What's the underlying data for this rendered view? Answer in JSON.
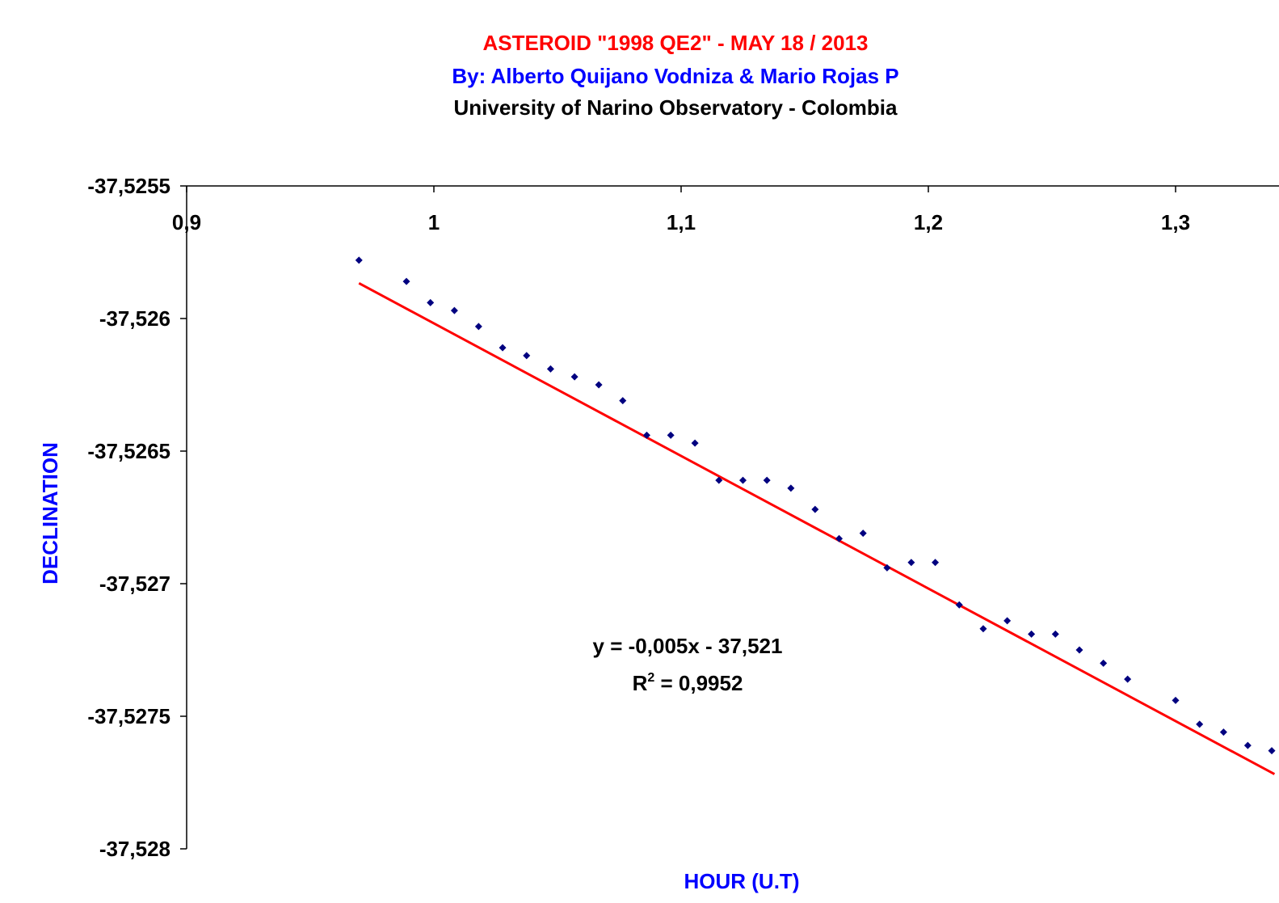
{
  "chart_data": {
    "type": "scatter",
    "title": "ASTEROID \"1998 QE2\" - MAY 18 / 2013",
    "subtitle": "By: Alberto Quijano Vodniza & Mario Rojas P",
    "subtitle2": "University of Narino Observatory - Colombia",
    "xlabel": "HOUR (U.T)",
    "ylabel": "DECLINATION",
    "xlim": [
      0.9,
      1.34
    ],
    "ylim": [
      -37.528,
      -37.5255
    ],
    "x_axis_position": "top",
    "x_ticks": [
      {
        "value": 0.9,
        "label": "0,9"
      },
      {
        "value": 1.0,
        "label": "1"
      },
      {
        "value": 1.1,
        "label": "1,1"
      },
      {
        "value": 1.2,
        "label": "1,2"
      },
      {
        "value": 1.3,
        "label": "1,3"
      }
    ],
    "y_ticks": [
      {
        "value": -37.5255,
        "label": "-37,5255"
      },
      {
        "value": -37.526,
        "label": "-37,526"
      },
      {
        "value": -37.5265,
        "label": "-37,5265"
      },
      {
        "value": -37.527,
        "label": "-37,527"
      },
      {
        "value": -37.5275,
        "label": "-37,5275"
      },
      {
        "value": -37.528,
        "label": "-37,528"
      }
    ],
    "grid": false,
    "legend": "none",
    "series": [
      {
        "points": [
          {
            "x": 0.9697,
            "y": -37.52578
          },
          {
            "x": 0.9889,
            "y": -37.52586
          },
          {
            "x": 0.9986,
            "y": -37.52594
          },
          {
            "x": 1.0083,
            "y": -37.52597
          },
          {
            "x": 1.0181,
            "y": -37.52603
          },
          {
            "x": 1.0278,
            "y": -37.52611
          },
          {
            "x": 1.0375,
            "y": -37.52614
          },
          {
            "x": 1.0472,
            "y": -37.52619
          },
          {
            "x": 1.0569,
            "y": -37.52622
          },
          {
            "x": 1.0667,
            "y": -37.52625
          },
          {
            "x": 1.0764,
            "y": -37.52631
          },
          {
            "x": 1.0861,
            "y": -37.52644
          },
          {
            "x": 1.0958,
            "y": -37.52644
          },
          {
            "x": 1.1056,
            "y": -37.52647
          },
          {
            "x": 1.1153,
            "y": -37.52661
          },
          {
            "x": 1.125,
            "y": -37.52661
          },
          {
            "x": 1.1347,
            "y": -37.52661
          },
          {
            "x": 1.1444,
            "y": -37.52664
          },
          {
            "x": 1.1542,
            "y": -37.52672
          },
          {
            "x": 1.1639,
            "y": -37.52683
          },
          {
            "x": 1.1736,
            "y": -37.52681
          },
          {
            "x": 1.1833,
            "y": -37.52694
          },
          {
            "x": 1.1931,
            "y": -37.52692
          },
          {
            "x": 1.2028,
            "y": -37.52692
          },
          {
            "x": 1.2125,
            "y": -37.52708
          },
          {
            "x": 1.2222,
            "y": -37.52717
          },
          {
            "x": 1.2319,
            "y": -37.52714
          },
          {
            "x": 1.2417,
            "y": -37.52719
          },
          {
            "x": 1.2514,
            "y": -37.52719
          },
          {
            "x": 1.2611,
            "y": -37.52725
          },
          {
            "x": 1.2708,
            "y": -37.5273
          },
          {
            "x": 1.2806,
            "y": -37.52736
          },
          {
            "x": 1.3,
            "y": -37.52744
          },
          {
            "x": 1.3097,
            "y": -37.52753
          },
          {
            "x": 1.3194,
            "y": -37.52756
          },
          {
            "x": 1.3292,
            "y": -37.52761
          },
          {
            "x": 1.3389,
            "y": -37.52763
          }
        ],
        "marker": "diamond",
        "color": "#000080"
      }
    ],
    "trendline": {
      "type": "linear",
      "slope": -0.005,
      "intercept": -37.521,
      "x_range": [
        0.9697,
        1.34
      ],
      "color": "#FF0000",
      "equation_label": "y = -0,005x - 37,521",
      "r2_label_prefix": "R",
      "r2_label_sup": "2",
      "r2_label_value": " = 0,9952"
    },
    "colors": {
      "title": "#FF0000",
      "subtitle": "#0000FF",
      "subtitle2": "#000000",
      "axis_titles": "#0000FF",
      "axes": "#000000"
    }
  }
}
